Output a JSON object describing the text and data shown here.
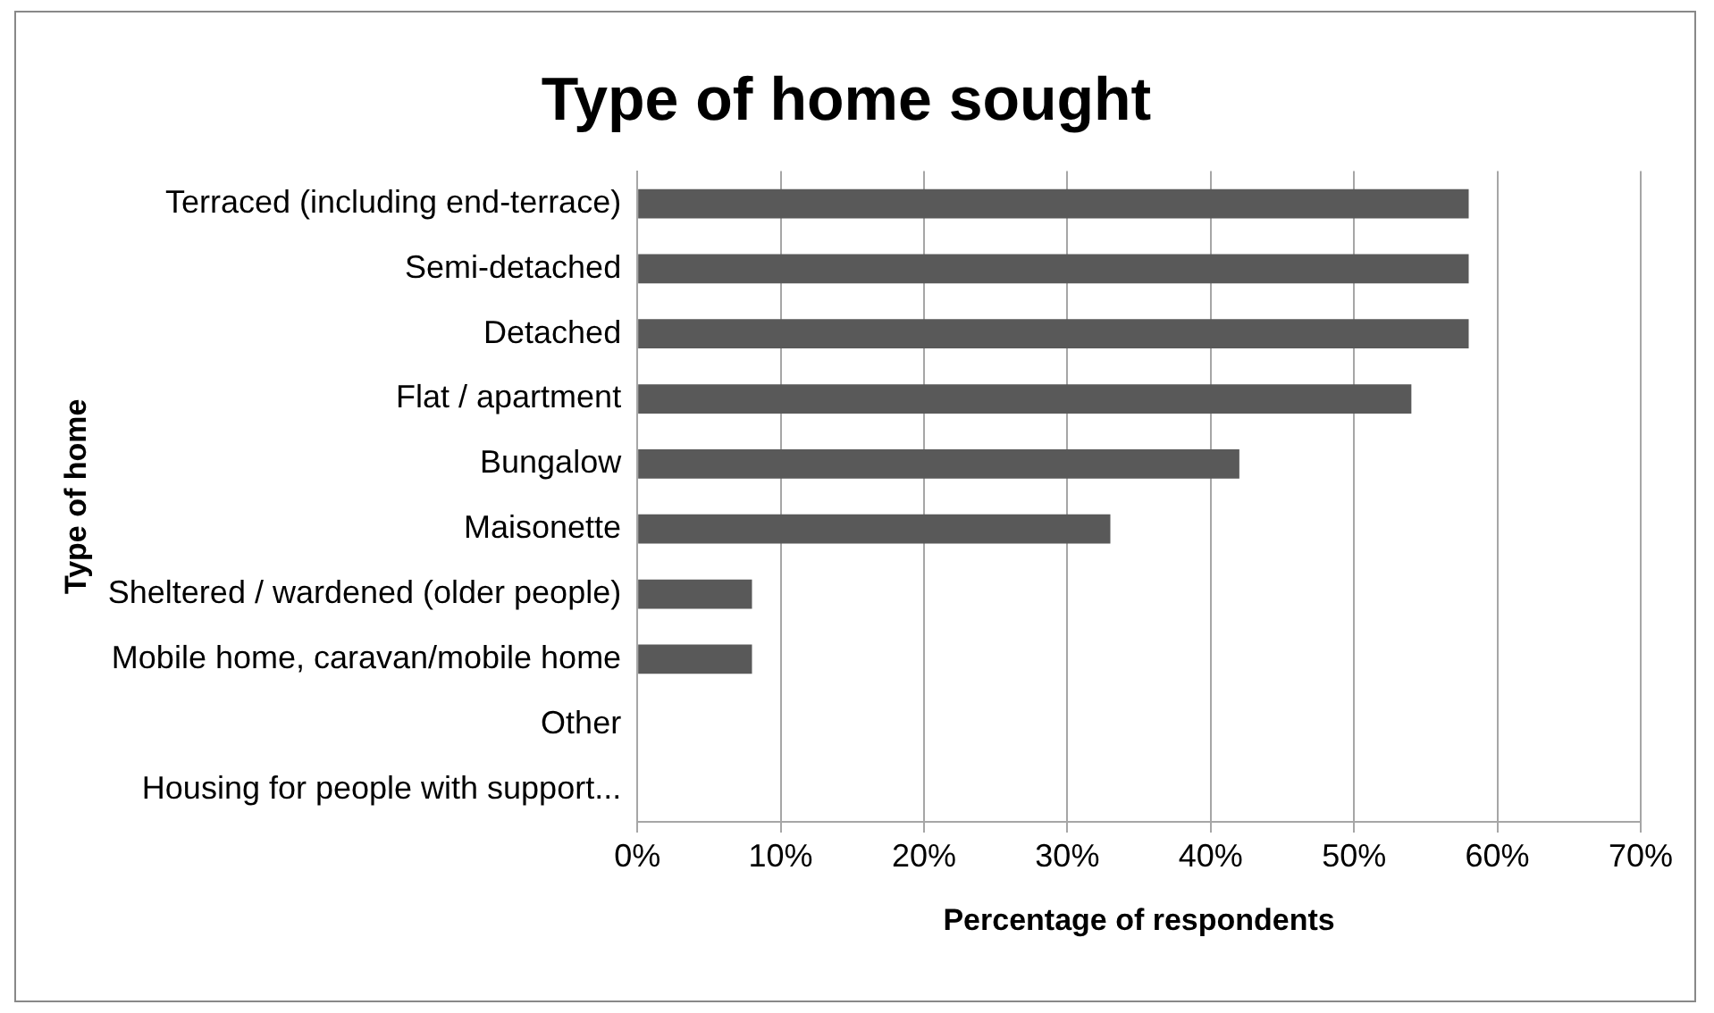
{
  "chart_data": {
    "type": "bar",
    "orientation": "horizontal",
    "title": "Type of home sought",
    "xlabel": "Percentage of respondents",
    "ylabel": "Type of home",
    "categories": [
      "Terraced (including end-terrace)",
      "Semi-detached",
      "Detached",
      "Flat / apartment",
      "Bungalow",
      "Maisonette",
      "Sheltered / wardened (older people)",
      "Mobile home, caravan/mobile home",
      "Other",
      "Housing for people with support..."
    ],
    "values": [
      58,
      58,
      58,
      54,
      42,
      33,
      8,
      8,
      0,
      0
    ],
    "color": "#595959",
    "xlim": [
      0,
      70
    ],
    "xticks": [
      {
        "value": 0,
        "label": "0%"
      },
      {
        "value": 10,
        "label": "10%"
      },
      {
        "value": 20,
        "label": "20%"
      },
      {
        "value": 30,
        "label": "30%"
      },
      {
        "value": 40,
        "label": "40%"
      },
      {
        "value": 50,
        "label": "50%"
      },
      {
        "value": 60,
        "label": "60%"
      },
      {
        "value": 70,
        "label": "70%"
      }
    ],
    "grid": "x",
    "legend": false
  }
}
